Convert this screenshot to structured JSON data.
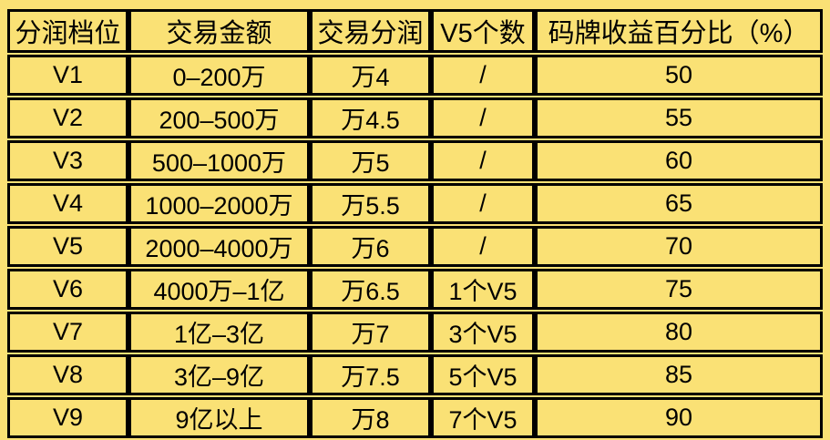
{
  "page": {
    "background_color": "#FAE175",
    "border_color": "#000000",
    "text_color": "#000000"
  },
  "chart_data": {
    "type": "table",
    "title": "",
    "columns": [
      "分润档位",
      "交易金额",
      "交易分润",
      "V5个数",
      "码牌收益百分比（%）"
    ],
    "rows": [
      [
        "V1",
        "0–200万",
        "万4",
        "/",
        "50"
      ],
      [
        "V2",
        "200–500万",
        "万4.5",
        "/",
        "55"
      ],
      [
        "V3",
        "500–1000万",
        "万5",
        "/",
        "60"
      ],
      [
        "V4",
        "1000–2000万",
        "万5.5",
        "/",
        "65"
      ],
      [
        "V5",
        "2000–4000万",
        "万6",
        "/",
        "70"
      ],
      [
        "V6",
        "4000万–1亿",
        "万6.5",
        "1个V5",
        "75"
      ],
      [
        "V7",
        "1亿–3亿",
        "万7",
        "3个V5",
        "80"
      ],
      [
        "V8",
        "3亿–9亿",
        "万7.5",
        "5个V5",
        "85"
      ],
      [
        "V9",
        "9亿以上",
        "万8",
        "7个V5",
        "90"
      ]
    ]
  }
}
